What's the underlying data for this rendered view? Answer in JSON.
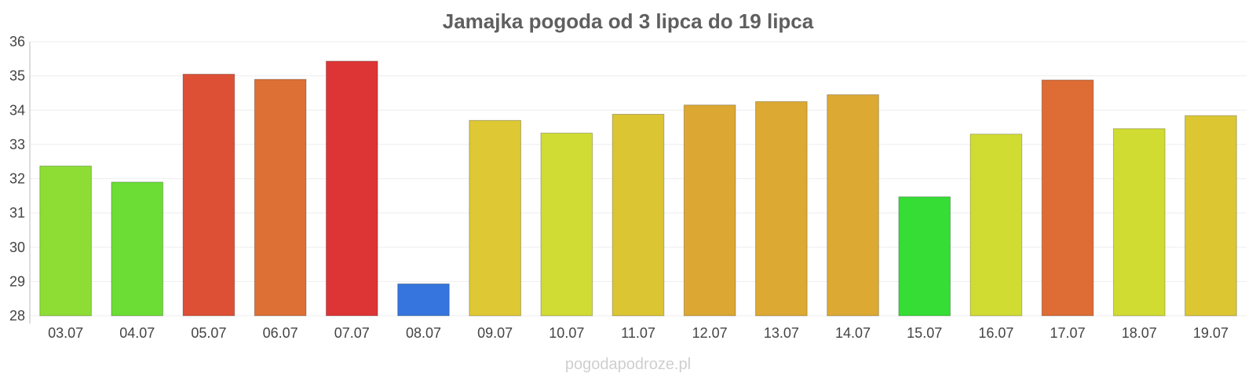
{
  "chart_data": {
    "type": "bar",
    "title": "Jamajka pogoda od 3 lipca do 19 lipca",
    "categories": [
      "03.07",
      "04.07",
      "05.07",
      "06.07",
      "07.07",
      "08.07",
      "09.07",
      "10.07",
      "11.07",
      "12.07",
      "13.07",
      "14.07",
      "15.07",
      "16.07",
      "17.07",
      "18.07",
      "19.07"
    ],
    "values": [
      32.37,
      31.9,
      35.05,
      34.9,
      35.43,
      28.93,
      33.7,
      33.33,
      33.88,
      34.15,
      34.25,
      34.45,
      31.47,
      33.3,
      34.88,
      33.46,
      33.84
    ],
    "colors": [
      "#8ddd35",
      "#6cdd35",
      "#dd5035",
      "#dd7035",
      "#dd3535",
      "#3575dd",
      "#dec833",
      "#d0dc33",
      "#dcc533",
      "#dca833",
      "#dca933",
      "#dcaa33",
      "#35dd35",
      "#d1dc33",
      "#dd6c35",
      "#d1dc33",
      "#dcc733"
    ],
    "ylim": [
      28,
      36
    ],
    "yticks": [
      28,
      29,
      30,
      31,
      32,
      33,
      34,
      35,
      36
    ],
    "xlabel": "",
    "ylabel": "",
    "grid": true,
    "legend": "none"
  },
  "watermark": "pogodapodroze.pl"
}
